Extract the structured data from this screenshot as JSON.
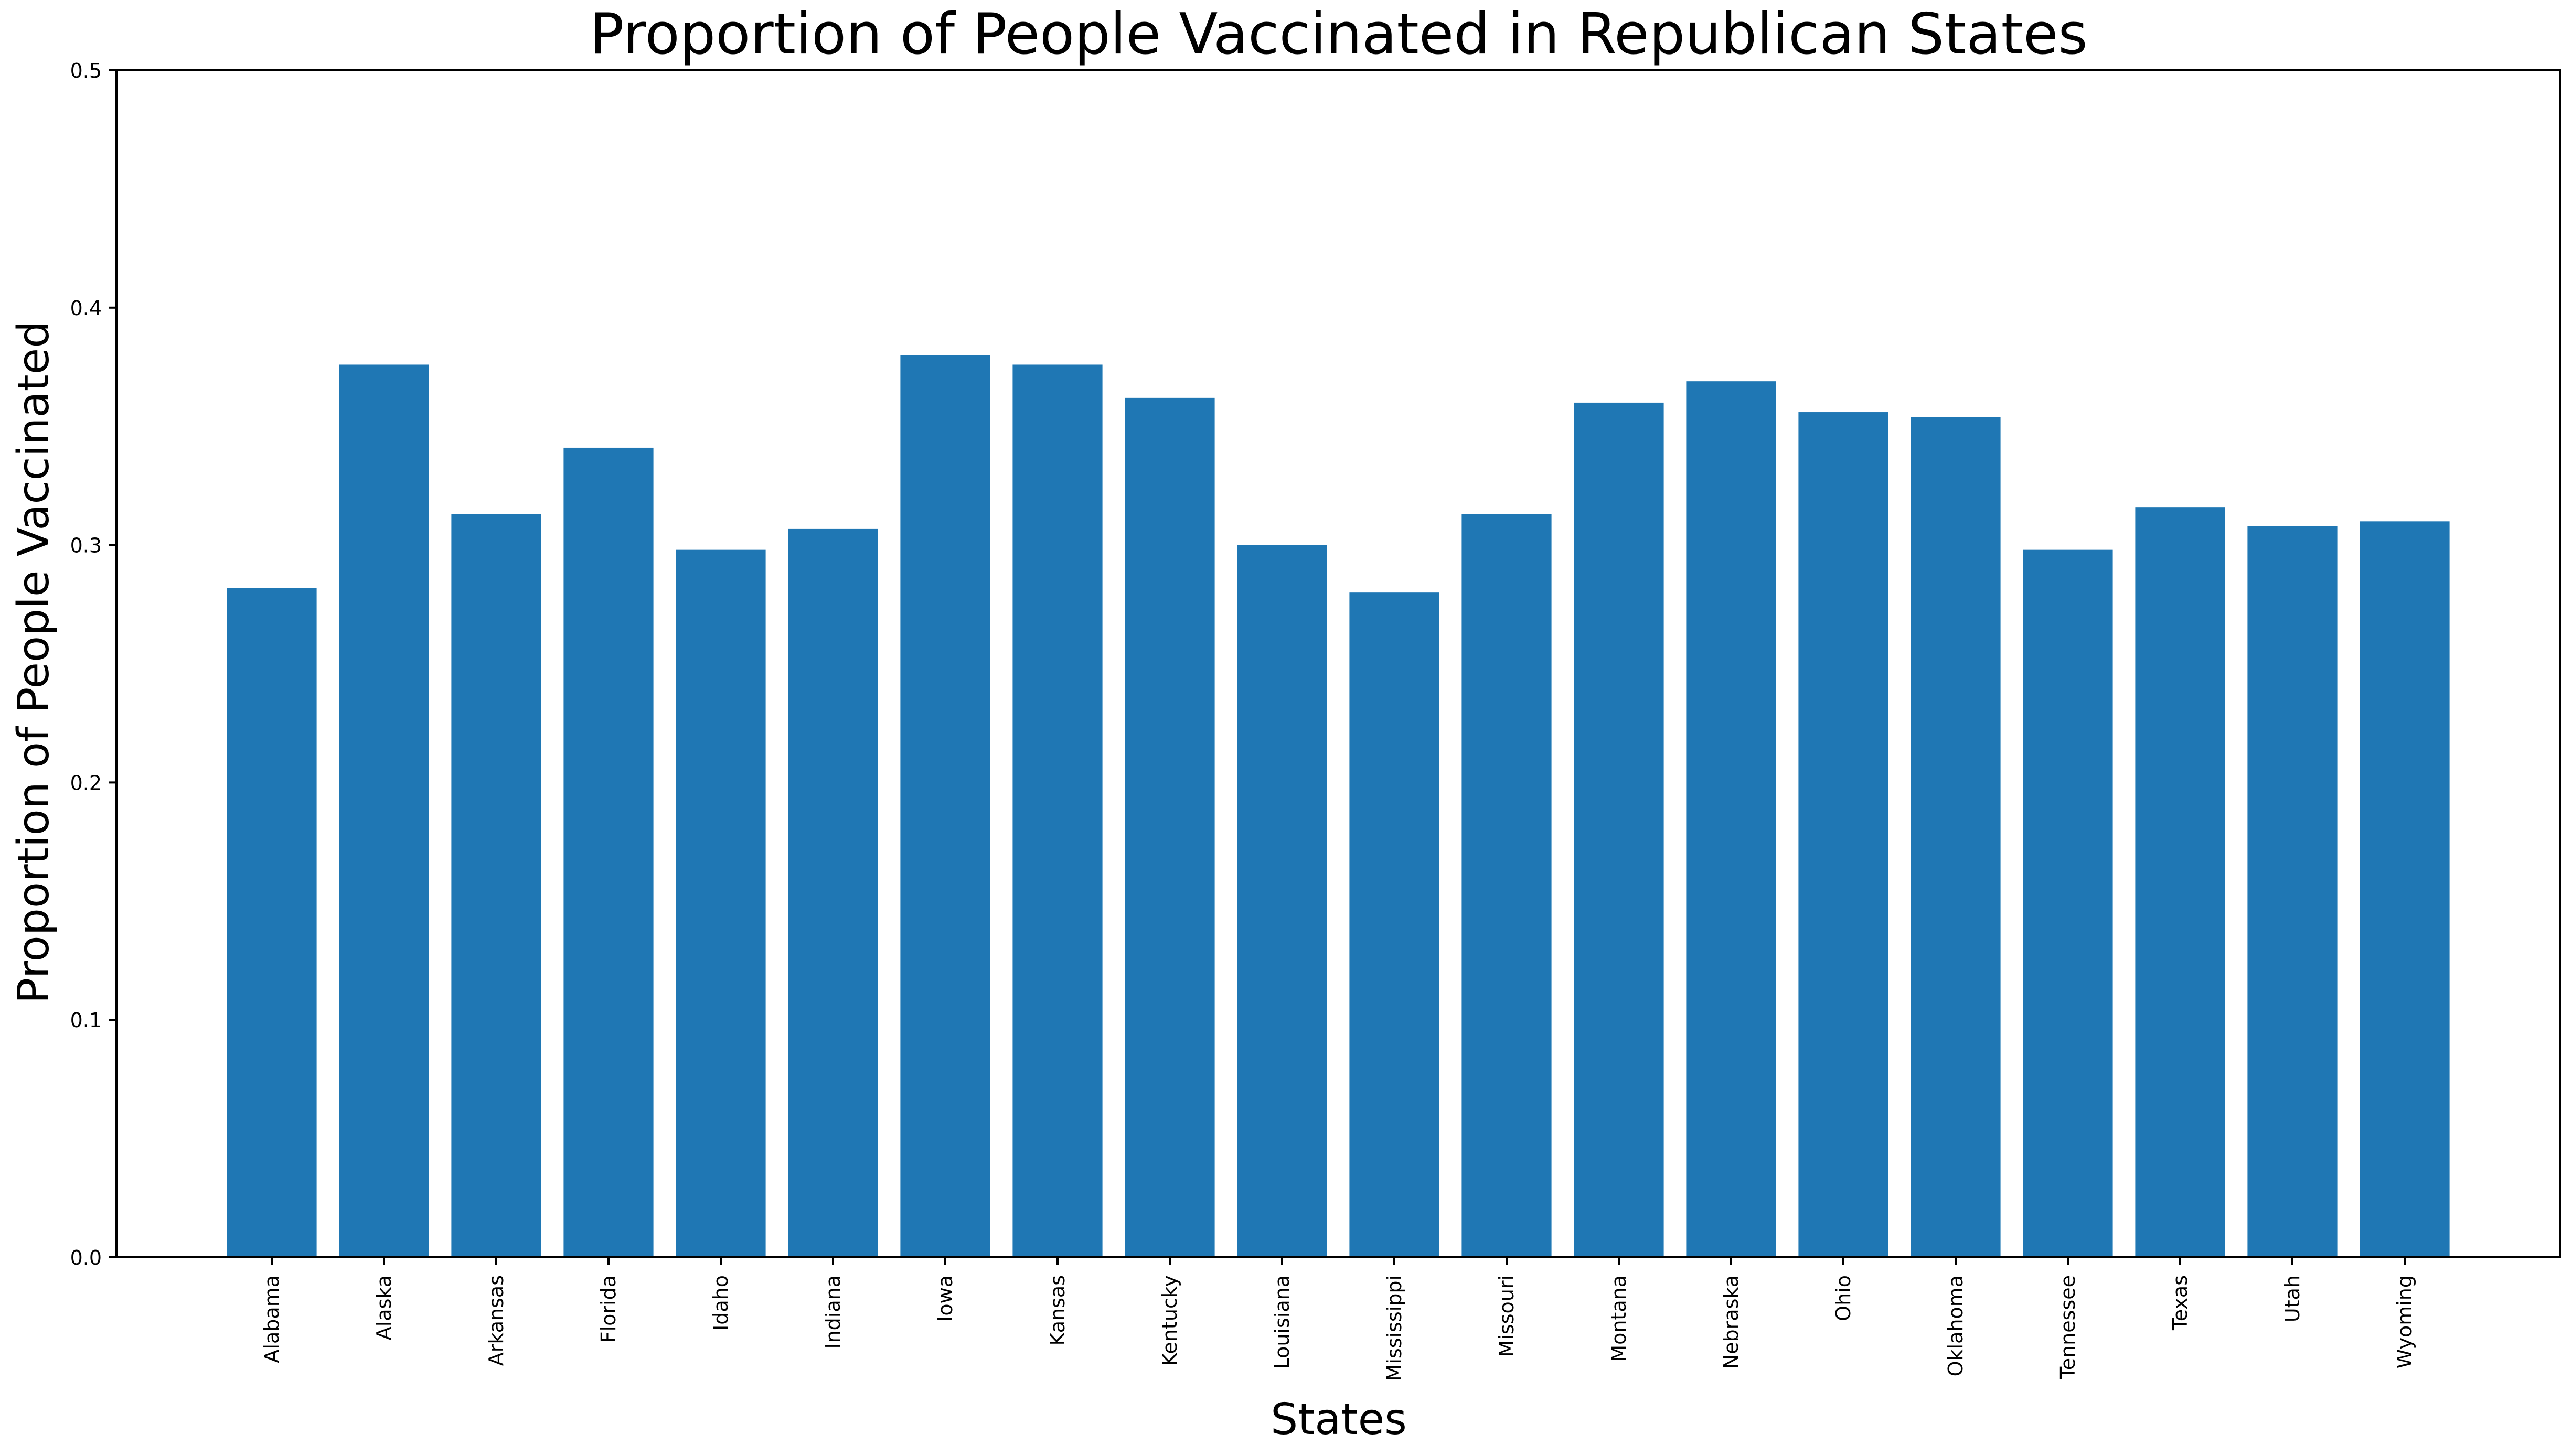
{
  "chart_data": {
    "type": "bar",
    "title": "Proportion of People Vaccinated in Republican States",
    "xlabel": "States",
    "ylabel": "Proportion of People Vaccinated",
    "ylim": [
      0,
      0.5
    ],
    "yticks": [
      0.0,
      0.1,
      0.2,
      0.3,
      0.4,
      0.5
    ],
    "ytick_labels": [
      "0.0",
      "0.1",
      "0.2",
      "0.3",
      "0.4",
      "0.5"
    ],
    "grid": false,
    "bar_color": "#1f77b4",
    "categories": [
      "Alabama",
      "Alaska",
      "Arkansas",
      "Florida",
      "Idaho",
      "Indiana",
      "Iowa",
      "Kansas",
      "Kentucky",
      "Louisiana",
      "Mississippi",
      "Missouri",
      "Montana",
      "Nebraska",
      "Ohio",
      "Oklahoma",
      "Tennessee",
      "Texas",
      "Utah",
      "Wyoming"
    ],
    "values": [
      0.282,
      0.376,
      0.313,
      0.341,
      0.298,
      0.307,
      0.38,
      0.376,
      0.362,
      0.3,
      0.28,
      0.313,
      0.36,
      0.369,
      0.356,
      0.354,
      0.298,
      0.316,
      0.308,
      0.31
    ]
  }
}
